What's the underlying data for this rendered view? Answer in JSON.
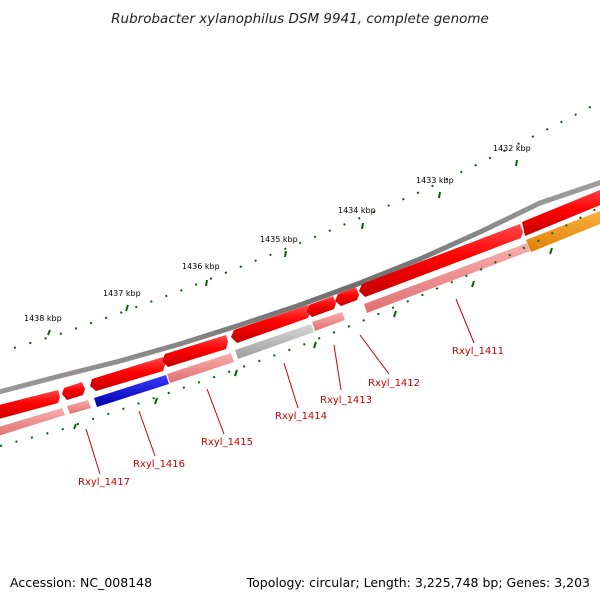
{
  "title": "Rubrobacter xylanophilus DSM 9941, complete genome",
  "footer": {
    "accession": "Accession: NC_008148",
    "summary": "Topology: circular; Length: 3,225,748 bp; Genes: 3,203"
  },
  "colors": {
    "backbone": "#7a7a7a",
    "forward": "#ff0000",
    "reverse": "#f28a8a",
    "hypothetical": "#bbbbbb",
    "highlight": "#0000e6",
    "other": "#ff9900",
    "tick": "#006600",
    "label": "#cc0000"
  },
  "ticks": [
    "1438 kbp",
    "1437 kbp",
    "1436 kbp",
    "1435 kbp",
    "1434 kbp",
    "1433 kbp",
    "1432 kbp"
  ],
  "genes": [
    "Rxyl_1417",
    "Rxyl_1416",
    "Rxyl_1415",
    "Rxyl_1414",
    "Rxyl_1413",
    "Rxyl_1412",
    "Rxyl_1411"
  ]
}
